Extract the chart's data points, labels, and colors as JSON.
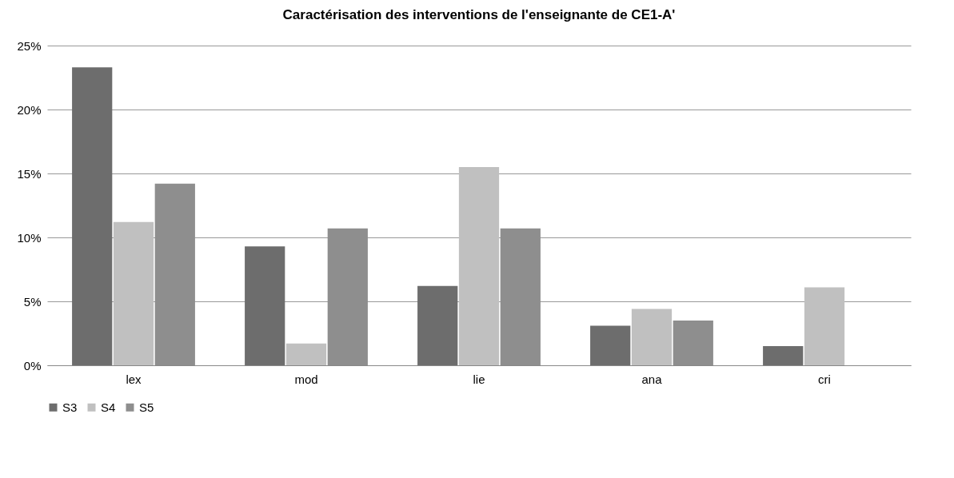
{
  "chart_data": {
    "type": "bar",
    "title": "Caractérisation des interventions de l'enseignante de CE1-A'",
    "categories": [
      "lex",
      "mod",
      "lie",
      "ana",
      "cri"
    ],
    "series": [
      {
        "name": "S3",
        "color": "#6d6d6d",
        "values": [
          23.3,
          9.3,
          6.2,
          3.1,
          1.5
        ]
      },
      {
        "name": "S4",
        "color": "#c0c0c0",
        "values": [
          11.2,
          1.7,
          15.5,
          4.4,
          6.1
        ]
      },
      {
        "name": "S5",
        "color": "#8e8e8e",
        "values": [
          14.2,
          10.7,
          10.7,
          3.5,
          0
        ]
      }
    ],
    "ylim": [
      0,
      25
    ],
    "yticks": [
      {
        "value": 0,
        "label": "0%"
      },
      {
        "value": 5,
        "label": "5%"
      },
      {
        "value": 10,
        "label": "10%"
      },
      {
        "value": 15,
        "label": "15%"
      },
      {
        "value": 20,
        "label": "20%"
      },
      {
        "value": 25,
        "label": "25%"
      }
    ],
    "grid": "y",
    "legend": "bottom"
  }
}
